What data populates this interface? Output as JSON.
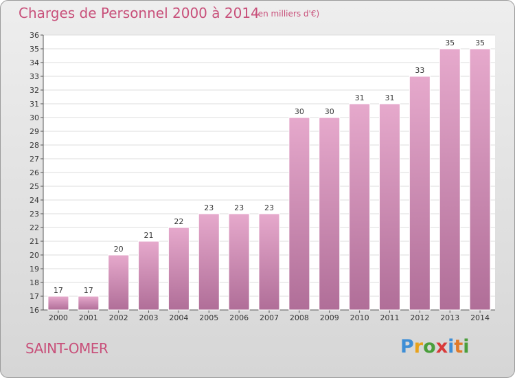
{
  "header": {
    "title": "Charges de Personnel 2000 à 2014",
    "subtitle": "(en milliers d'€)"
  },
  "footer": {
    "city": "SAINT-OMER",
    "logo_letters": [
      "P",
      "r",
      "o",
      "x",
      "i",
      "t",
      "i"
    ]
  },
  "colors": {
    "bar_top": "#e6a9cc",
    "bar_bottom": "#b06e98",
    "title": "#c8507a"
  },
  "chart_data": {
    "type": "bar",
    "title": "Charges de Personnel 2000 à 2014",
    "subtitle": "(en milliers d'€)",
    "xlabel": "",
    "ylabel": "",
    "categories": [
      "2000",
      "2001",
      "2002",
      "2003",
      "2004",
      "2005",
      "2006",
      "2007",
      "2008",
      "2009",
      "2010",
      "2011",
      "2012",
      "2013",
      "2014"
    ],
    "values": [
      17,
      17,
      20,
      21,
      22,
      23,
      23,
      23,
      30,
      30,
      31,
      31,
      33,
      35,
      35
    ],
    "ylim": [
      16,
      36
    ],
    "yticks": [
      16,
      17,
      18,
      19,
      20,
      21,
      22,
      23,
      24,
      25,
      26,
      27,
      28,
      29,
      30,
      31,
      32,
      33,
      34,
      35,
      36
    ],
    "grid": true
  }
}
